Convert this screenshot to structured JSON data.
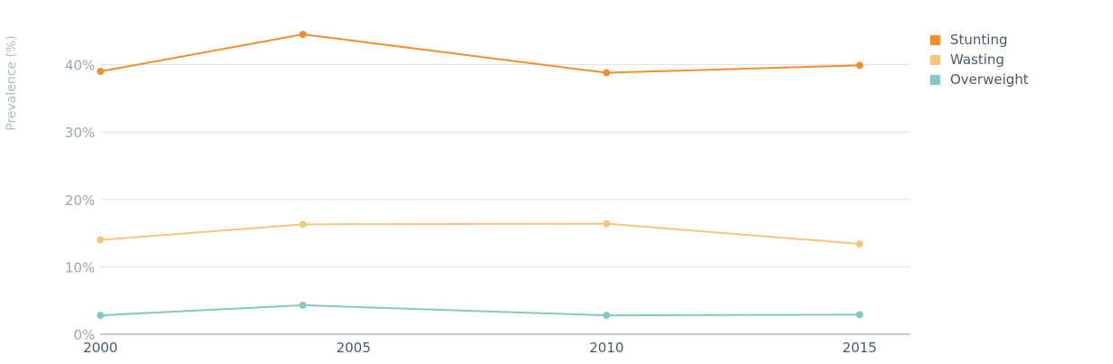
{
  "chart_data": {
    "type": "line",
    "ylabel": "Prevalence (%)",
    "x": [
      2000,
      2004,
      2010,
      2015
    ],
    "x_ticks": [
      "2000",
      "2005",
      "2010",
      "2015"
    ],
    "y_ticks": [
      "0%",
      "10%",
      "20%",
      "30%",
      "40%"
    ],
    "ylim": [
      0,
      45
    ],
    "grid": true,
    "legend_position": "top-right",
    "series": [
      {
        "name": "Stunting",
        "color": "#f28e2b",
        "values": [
          39.0,
          44.5,
          38.8,
          39.9
        ]
      },
      {
        "name": "Wasting",
        "color": "#fbc57f",
        "values": [
          14.0,
          16.3,
          16.4,
          13.4
        ]
      },
      {
        "name": "Overweight",
        "color": "#86c9c3",
        "values": [
          2.8,
          4.3,
          2.8,
          2.9
        ]
      }
    ]
  }
}
